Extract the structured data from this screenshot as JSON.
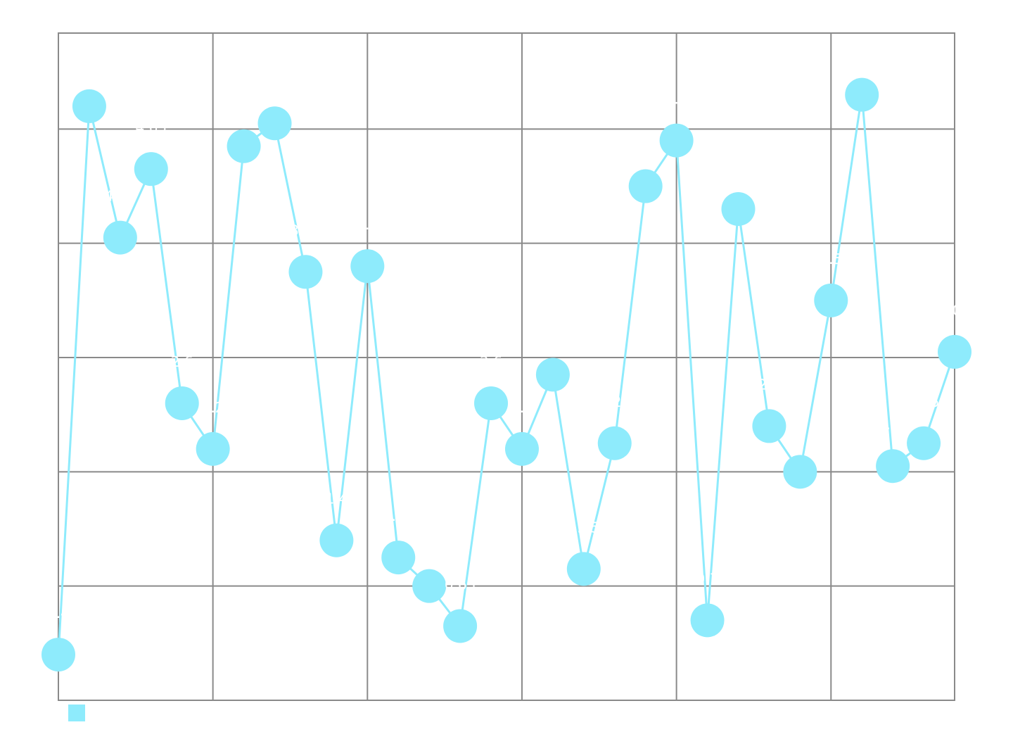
{
  "chart_data": {
    "type": "line",
    "title": "",
    "xlabel": "",
    "ylabel": "",
    "x": [
      0,
      1,
      2,
      3,
      4,
      5,
      6,
      7,
      8,
      9,
      10,
      11,
      12,
      13,
      14,
      15,
      16,
      17,
      18,
      19,
      20,
      21,
      22,
      23,
      24,
      25,
      26,
      27,
      28,
      29
    ],
    "xlim": [
      0,
      29
    ],
    "ylim": [
      0,
      5.84
    ],
    "grid": true,
    "legend_position": "bottom-left",
    "series": [
      {
        "name": "",
        "color": "#8eebfc",
        "values": [
          0.4,
          5.2,
          4.05,
          4.65,
          2.6,
          2.2,
          4.85,
          5.05,
          3.75,
          1.4,
          3.8,
          1.25,
          1.0,
          0.65,
          2.6,
          2.2,
          2.85,
          1.15,
          2.25,
          4.5,
          4.9,
          0.7,
          4.3,
          2.4,
          2.0,
          3.5,
          5.3,
          2.05,
          2.25,
          3.05
        ]
      }
    ]
  }
}
